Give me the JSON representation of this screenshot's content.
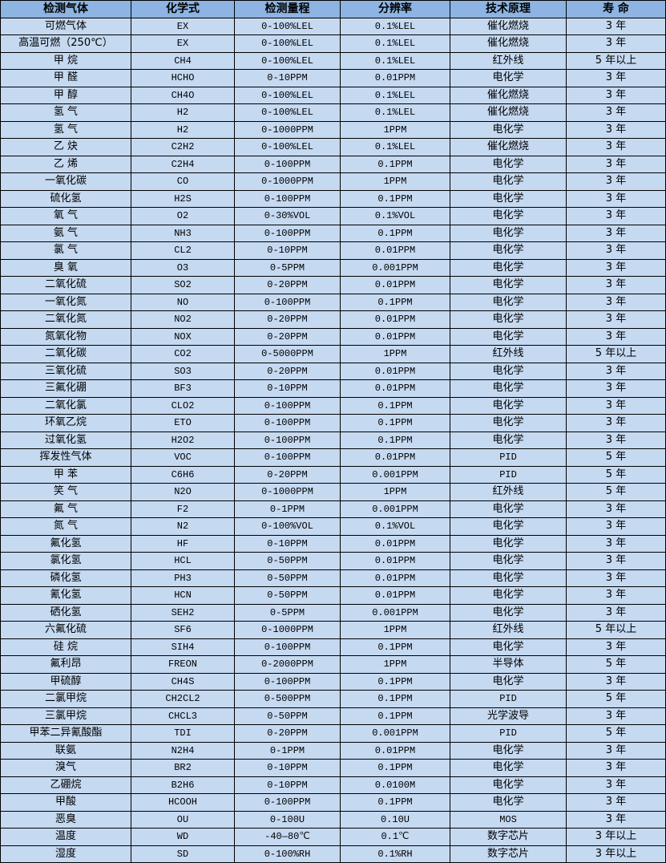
{
  "colors": {
    "header_bg": "#8DB4E2",
    "row_bg": "#C5D9F1",
    "border": "#000000"
  },
  "headers": [
    "检测气体",
    "化学式",
    "检测量程",
    "分辨率",
    "技术原理",
    "寿 命"
  ],
  "rows": [
    [
      "可燃气体",
      "EX",
      "0-100%LEL",
      "0.1%LEL",
      "催化燃烧",
      "3 年"
    ],
    [
      "高温可燃（250℃）",
      "EX",
      "0-100%LEL",
      "0.1%LEL",
      "催化燃烧",
      "3 年"
    ],
    [
      "甲 烷",
      "CH4",
      "0-100%LEL",
      "0.1%LEL",
      "红外线",
      "5 年以上"
    ],
    [
      "甲 醛",
      "HCHO",
      "0-10PPM",
      "0.01PPM",
      "电化学",
      "3 年"
    ],
    [
      "甲 醇",
      "CH4O",
      "0-100%LEL",
      "0.1%LEL",
      "催化燃烧",
      "3 年"
    ],
    [
      "氢 气",
      "H2",
      "0-100%LEL",
      "0.1%LEL",
      "催化燃烧",
      "3 年"
    ],
    [
      "氢 气",
      "H2",
      "0-1000PPM",
      "1PPM",
      "电化学",
      "3 年"
    ],
    [
      "乙 炔",
      "C2H2",
      "0-100%LEL",
      "0.1%LEL",
      "催化燃烧",
      "3 年"
    ],
    [
      "乙 烯",
      "C2H4",
      "0-100PPM",
      "0.1PPM",
      "电化学",
      "3 年"
    ],
    [
      "一氧化碳",
      "CO",
      "0-1000PPM",
      "1PPM",
      "电化学",
      "3 年"
    ],
    [
      "硫化氢",
      "H2S",
      "0-100PPM",
      "0.1PPM",
      "电化学",
      "3 年"
    ],
    [
      "氧 气",
      "O2",
      "0-30%VOL",
      "0.1%VOL",
      "电化学",
      "3 年"
    ],
    [
      "氨 气",
      "NH3",
      "0-100PPM",
      "0.1PPM",
      "电化学",
      "3 年"
    ],
    [
      "氯 气",
      "CL2",
      "0-10PPM",
      "0.01PPM",
      "电化学",
      "3 年"
    ],
    [
      "臭 氧",
      "O3",
      "0-5PPM",
      "0.001PPM",
      "电化学",
      "3 年"
    ],
    [
      "二氧化硫",
      "SO2",
      "0-20PPM",
      "0.01PPM",
      "电化学",
      "3 年"
    ],
    [
      "一氧化氮",
      "NO",
      "0-100PPM",
      "0.1PPM",
      "电化学",
      "3 年"
    ],
    [
      "二氧化氮",
      "NO2",
      "0-20PPM",
      "0.01PPM",
      "电化学",
      "3 年"
    ],
    [
      "氮氧化物",
      "NOX",
      "0-20PPM",
      "0.01PPM",
      "电化学",
      "3 年"
    ],
    [
      "二氧化碳",
      "CO2",
      "0-5000PPM",
      "1PPM",
      "红外线",
      "5 年以上"
    ],
    [
      "三氧化硫",
      "SO3",
      "0-20PPM",
      "0.01PPM",
      "电化学",
      "3 年"
    ],
    [
      "三氟化硼",
      "BF3",
      "0-10PPM",
      "0.01PPM",
      "电化学",
      "3 年"
    ],
    [
      "二氧化氯",
      "CLO2",
      "0-100PPM",
      "0.1PPM",
      "电化学",
      "3 年"
    ],
    [
      "环氧乙烷",
      "ETO",
      "0-100PPM",
      "0.1PPM",
      "电化学",
      "3 年"
    ],
    [
      "过氧化氢",
      "H2O2",
      "0-100PPM",
      "0.1PPM",
      "电化学",
      "3 年"
    ],
    [
      "挥发性气体",
      "VOC",
      "0-100PPM",
      "0.01PPM",
      "PID",
      "5 年"
    ],
    [
      "甲 苯",
      "C6H6",
      "0-20PPM",
      "0.001PPM",
      "PID",
      "5 年"
    ],
    [
      "笑 气",
      "N2O",
      "0-1000PPM",
      "1PPM",
      "红外线",
      "5 年"
    ],
    [
      "氟 气",
      "F2",
      "0-1PPM",
      "0.001PPM",
      "电化学",
      "3 年"
    ],
    [
      "氮 气",
      "N2",
      "0-100%VOL",
      "0.1%VOL",
      "电化学",
      "3 年"
    ],
    [
      "氟化氢",
      "HF",
      "0-10PPM",
      "0.01PPM",
      "电化学",
      "3 年"
    ],
    [
      "氯化氢",
      "HCL",
      "0-50PPM",
      "0.01PPM",
      "电化学",
      "3 年"
    ],
    [
      "磷化氢",
      "PH3",
      "0-50PPM",
      "0.01PPM",
      "电化学",
      "3 年"
    ],
    [
      "氰化氢",
      "HCN",
      "0-50PPM",
      "0.01PPM",
      "电化学",
      "3 年"
    ],
    [
      "硒化氢",
      "SEH2",
      "0-5PPM",
      "0.001PPM",
      "电化学",
      "3 年"
    ],
    [
      "六氟化硫",
      "SF6",
      "0-1000PPM",
      "1PPM",
      "红外线",
      "5 年以上"
    ],
    [
      "硅 烷",
      "SIH4",
      "0-100PPM",
      "0.1PPM",
      "电化学",
      "3 年"
    ],
    [
      "氟利昂",
      "FREON",
      "0-2000PPM",
      "1PPM",
      "半导体",
      "5 年"
    ],
    [
      "甲硫醇",
      "CH4S",
      "0-100PPM",
      "0.1PPM",
      "电化学",
      "3 年"
    ],
    [
      "二氯甲烷",
      "CH2CL2",
      "0-500PPM",
      "0.1PPM",
      "PID",
      "5 年"
    ],
    [
      "三氯甲烷",
      "CHCL3",
      "0-50PPM",
      "0.1PPM",
      "光学波导",
      "3 年"
    ],
    [
      "甲苯二异氰酸酯",
      "TDI",
      "0-20PPM",
      "0.001PPM",
      "PID",
      "5 年"
    ],
    [
      "联氨",
      "N2H4",
      "0-1PPM",
      "0.01PPM",
      "电化学",
      "3 年"
    ],
    [
      "溴气",
      "BR2",
      "0-10PPM",
      "0.1PPM",
      "电化学",
      "3 年"
    ],
    [
      "乙硼烷",
      "B2H6",
      "0-10PPM",
      "0.0100M",
      "电化学",
      "3 年"
    ],
    [
      "甲酸",
      "HCOOH",
      "0-100PPM",
      "0.1PPM",
      "电化学",
      "3 年"
    ],
    [
      "恶臭",
      "OU",
      "0-100U",
      "0.10U",
      "MOS",
      "3 年"
    ],
    [
      "温度",
      "WD",
      "-40—80℃",
      "0.1℃",
      "数字芯片",
      "3 年以上"
    ],
    [
      "湿度",
      "SD",
      "0-100%RH",
      "0.1%RH",
      "数字芯片",
      "3 年以上"
    ]
  ]
}
